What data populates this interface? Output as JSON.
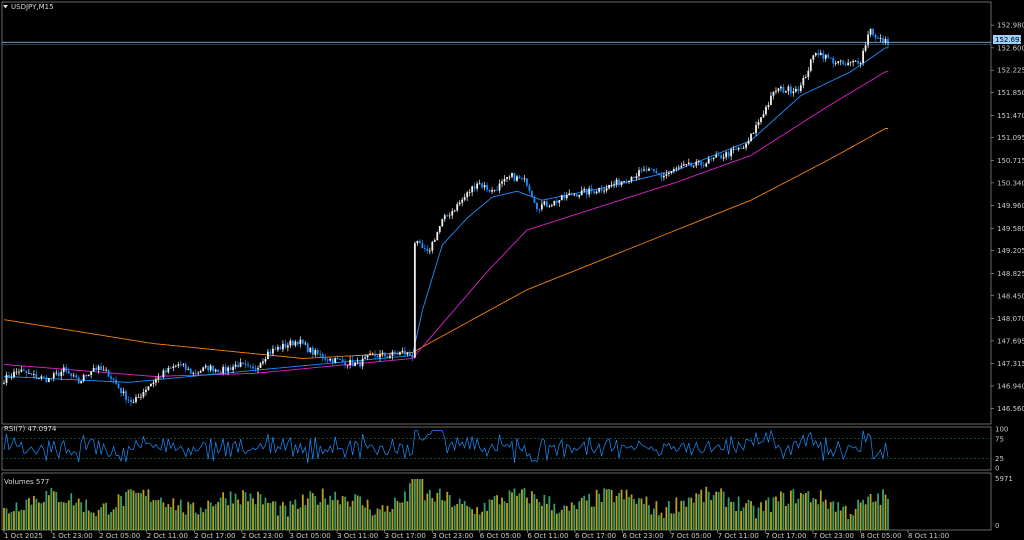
{
  "window": {
    "symbol_label": "USDJPY,M15",
    "current_price": "152.693",
    "menu_icon": "triangle-down-icon"
  },
  "colors": {
    "background": "#000000",
    "frame": "#b0b0b0",
    "candle_up": "#f2f2f2",
    "candle_down": "#1e90ff",
    "ma_fast": "#1e90ff",
    "ma_mid": "#e020d0",
    "ma_slow": "#f08010",
    "rsi_line": "#1e90ff",
    "rsi_level": "#2a8a6a",
    "price_line": "#9ad0ff",
    "volume_a": "#3a9a6a",
    "volume_b": "#b8a020"
  },
  "rsi": {
    "label": "RSI(7) 47.0974",
    "levels": [
      75,
      25
    ],
    "axis": [
      "100",
      "75",
      "25",
      "0"
    ]
  },
  "volumes": {
    "label": "Volumes 577",
    "axis": [
      "5971",
      "0"
    ]
  },
  "chart_data": {
    "type": "candlestick",
    "title": "USDJPY,M15",
    "y_ticks": [
      "152.980",
      "152.600",
      "152.225",
      "151.850",
      "151.470",
      "151.095",
      "150.715",
      "150.340",
      "149.960",
      "149.580",
      "149.205",
      "148.825",
      "148.450",
      "148.070",
      "147.695",
      "147.315",
      "146.940",
      "146.560"
    ],
    "ylim": [
      146.32,
      153.2
    ],
    "x_ticks": [
      "1 Oct 2025",
      "1 Oct 23:00",
      "2 Oct 05:00",
      "2 Oct 11:00",
      "2 Oct 17:00",
      "2 Oct 23:00",
      "3 Oct 05:00",
      "3 Oct 11:00",
      "3 Oct 17:00",
      "3 Oct 23:00",
      "6 Oct 05:00",
      "6 Oct 11:00",
      "6 Oct 17:00",
      "6 Oct 23:00",
      "7 Oct 05:00",
      "7 Oct 11:00",
      "7 Oct 17:00",
      "7 Oct 23:00",
      "8 Oct 05:00",
      "8 Oct 11:00"
    ],
    "close_anchors": [
      [
        0,
        147.05
      ],
      [
        6,
        147.2
      ],
      [
        12,
        147.1
      ],
      [
        18,
        147.05
      ],
      [
        24,
        147.2
      ],
      [
        30,
        147.0
      ],
      [
        36,
        147.25
      ],
      [
        42,
        147.15
      ],
      [
        48,
        146.8
      ],
      [
        52,
        146.65
      ],
      [
        58,
        146.95
      ],
      [
        64,
        147.15
      ],
      [
        70,
        147.3
      ],
      [
        76,
        147.15
      ],
      [
        82,
        147.25
      ],
      [
        88,
        147.2
      ],
      [
        94,
        147.3
      ],
      [
        100,
        147.2
      ],
      [
        106,
        147.5
      ],
      [
        112,
        147.6
      ],
      [
        118,
        147.7
      ],
      [
        124,
        147.5
      ],
      [
        130,
        147.4
      ],
      [
        136,
        147.35
      ],
      [
        142,
        147.3
      ],
      [
        148,
        147.45
      ],
      [
        154,
        147.45
      ],
      [
        160,
        147.5
      ],
      [
        164,
        147.45
      ],
      [
        165,
        149.35
      ],
      [
        170,
        149.15
      ],
      [
        176,
        149.7
      ],
      [
        184,
        150.05
      ],
      [
        190,
        150.35
      ],
      [
        196,
        150.2
      ],
      [
        204,
        150.45
      ],
      [
        210,
        150.35
      ],
      [
        214,
        149.95
      ],
      [
        220,
        150.0
      ],
      [
        228,
        150.15
      ],
      [
        236,
        150.2
      ],
      [
        244,
        150.3
      ],
      [
        252,
        150.45
      ],
      [
        258,
        150.55
      ],
      [
        264,
        150.45
      ],
      [
        272,
        150.6
      ],
      [
        280,
        150.65
      ],
      [
        286,
        150.75
      ],
      [
        292,
        150.85
      ],
      [
        298,
        150.95
      ],
      [
        304,
        151.45
      ],
      [
        310,
        151.9
      ],
      [
        316,
        151.9
      ],
      [
        320,
        151.95
      ],
      [
        326,
        152.55
      ],
      [
        332,
        152.4
      ],
      [
        338,
        152.3
      ],
      [
        344,
        152.4
      ],
      [
        348,
        152.95
      ],
      [
        350,
        152.75
      ],
      [
        354,
        152.7
      ]
    ],
    "ma_anchors": {
      "fast": [
        [
          0,
          147.1
        ],
        [
          50,
          147.0
        ],
        [
          100,
          147.2
        ],
        [
          164,
          147.45
        ],
        [
          168,
          148.2
        ],
        [
          176,
          149.3
        ],
        [
          186,
          149.75
        ],
        [
          196,
          150.1
        ],
        [
          206,
          150.2
        ],
        [
          216,
          150.05
        ],
        [
          240,
          150.25
        ],
        [
          270,
          150.55
        ],
        [
          300,
          151.05
        ],
        [
          320,
          151.8
        ],
        [
          340,
          152.2
        ],
        [
          354,
          152.6
        ]
      ],
      "mid": [
        [
          0,
          147.3
        ],
        [
          60,
          147.1
        ],
        [
          100,
          147.15
        ],
        [
          164,
          147.4
        ],
        [
          194,
          148.85
        ],
        [
          210,
          149.55
        ],
        [
          240,
          149.95
        ],
        [
          270,
          150.35
        ],
        [
          300,
          150.8
        ],
        [
          330,
          151.6
        ],
        [
          354,
          152.2
        ]
      ],
      "slow": [
        [
          0,
          148.05
        ],
        [
          60,
          147.65
        ],
        [
          120,
          147.4
        ],
        [
          164,
          147.5
        ],
        [
          210,
          148.55
        ],
        [
          240,
          149.05
        ],
        [
          270,
          149.55
        ],
        [
          300,
          150.05
        ],
        [
          330,
          150.7
        ],
        [
          354,
          151.25
        ]
      ]
    }
  }
}
